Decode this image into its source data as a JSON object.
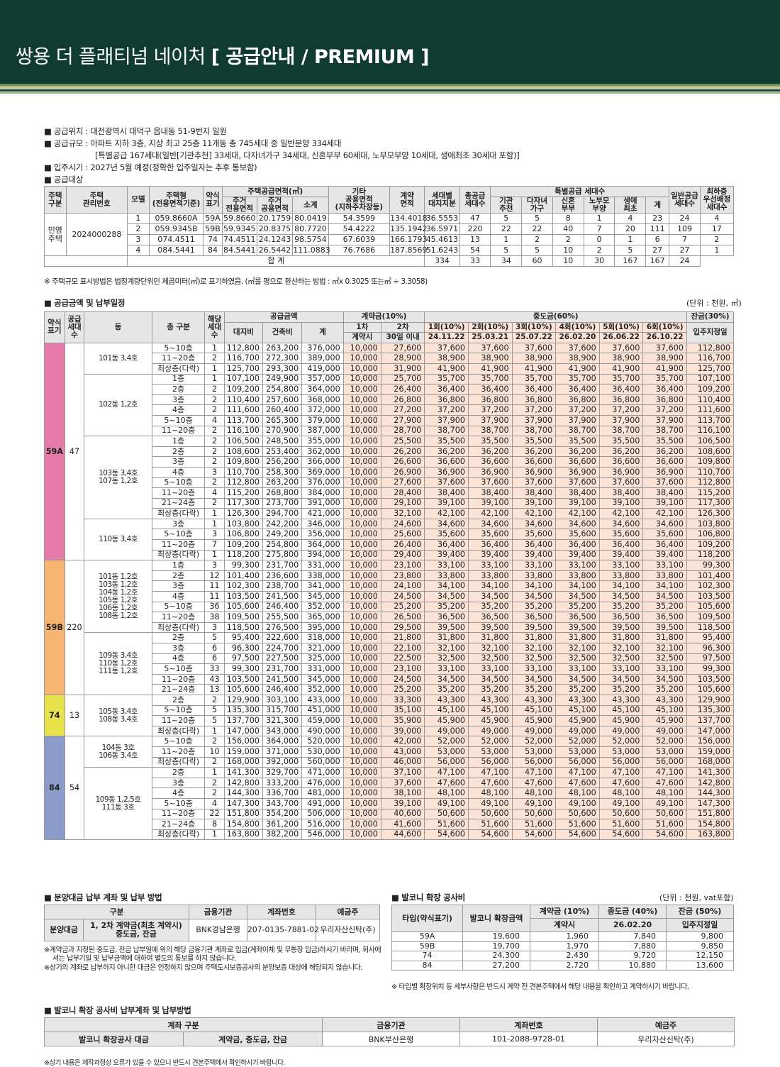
{
  "header": {
    "title_main": "쌍용 더 플래티넘 네이처",
    "title_bracket": "[ 공급안내 / PREMIUM ]"
  },
  "info": {
    "lines": [
      "■ 공급위치 : 대전광역시 대덕구 읍내동 51-9번지 일원",
      "■ 공급규모 : 아파트 지하 3층, 지상 최고 25층 11개동 총 745세대 중 일반분양 334세대",
      "[특별공급 167세대(일반[기관추천] 33세대, 다자녀가구 34세대, 신혼부부 60세대, 노부모부양 10세대, 생애최초 30세대 포함)]",
      "■ 입주시기 : 2027년 5월 예정(정확한 입주일자는 추후 통보함)",
      "■ 공급대상"
    ]
  },
  "supply_table": {
    "headers": {
      "type": "주택\n구분",
      "mgmt": "주택\n관리번호",
      "model": "모델",
      "htype": "주택형\n(전용면적기준)",
      "abbr": "약식\n표기",
      "area_group": "주택공급면적(㎡)",
      "excl": "주거\n전용면적",
      "common": "주거\n공용면적",
      "subtotal": "소계",
      "other": "기타\n공용면적\n(지하주차장등)",
      "contract": "계약\n면적",
      "land": "세대별\n대지지분",
      "total": "총공급\n세대수",
      "special_group": "특별공급 세대수",
      "inst": "기관\n추천",
      "multi": "다자녀\n가구",
      "newly": "신혼\n부부",
      "elder": "노부모\n부양",
      "first": "생애\n최초",
      "sp_sum": "계",
      "general": "일반공급\n세대수",
      "toppri": "최하층\n우선배정\n세대수"
    },
    "type_label": "민영\n주택",
    "mgmt_no": "2024000288",
    "rows": [
      [
        "1",
        "059.8660A",
        "59A",
        "59.8660",
        "20.1759",
        "80.0419",
        "54.3599",
        "134.4018",
        "36.5553",
        "47",
        "5",
        "5",
        "8",
        "1",
        "4",
        "23",
        "24",
        "4"
      ],
      [
        "2",
        "059.9345B",
        "59B",
        "59.9345",
        "20.8375",
        "80.7720",
        "54.4222",
        "135.1942",
        "36.5971",
        "220",
        "22",
        "22",
        "40",
        "7",
        "20",
        "111",
        "109",
        "17"
      ],
      [
        "3",
        "074.4511",
        "74",
        "74.4511",
        "24.1243",
        "98.5754",
        "67.6039",
        "166.1793",
        "45.4613",
        "13",
        "1",
        "2",
        "2",
        "0",
        "1",
        "6",
        "7",
        "2"
      ],
      [
        "4",
        "084.5441",
        "84",
        "84.5441",
        "26.5442",
        "111.0883",
        "76.7686",
        "187.8569",
        "51.6243",
        "54",
        "5",
        "5",
        "10",
        "2",
        "5",
        "27",
        "27",
        "1"
      ]
    ],
    "sum_label": "합 계",
    "sum_row": [
      "334",
      "33",
      "34",
      "60",
      "10",
      "30",
      "167",
      "167",
      "24"
    ]
  },
  "supply_note": "※ 주택규모 표시방법은 법정계량단위인 제곱미터(㎡)로 표기하였음. (㎡를 평으로 환산하는 방법 : ㎡x 0.3025 또는㎡ ÷ 3.3058)",
  "price_section": {
    "title": "■ 공급금액 및 납부일정",
    "unit": "(단위 : 천원, ㎡)"
  },
  "price_headers": {
    "abbr": "약식\n표기",
    "units": "공급\n세대\n수",
    "dong": "동",
    "floor": "층 구분",
    "hh": "해당\n세대\n수",
    "supply": "공급금액",
    "land": "대지비",
    "bldg": "건축비",
    "total": "계",
    "deposit": "계약금(10%)",
    "first": "1차",
    "second": "2차",
    "at_contract": "계약시",
    "within30": "30일 이내",
    "mid": "중도금(60%)",
    "m1": "1회(10%)",
    "m2": "2회(10%)",
    "m3": "3회(10%)",
    "m4": "4회(10%)",
    "m5": "5회(10%)",
    "m6": "6회(10%)",
    "d1": "24.11.22",
    "d2": "25.03.21",
    "d3": "25.07.22",
    "d4": "26.02.20",
    "d5": "26.06.22",
    "d6": "26.10.22",
    "balance": "잔금(30%)",
    "movein": "입주지정일"
  },
  "price_groups": [
    {
      "abbr": "59A",
      "units": "47",
      "color": "#e67aab",
      "dongs": [
        {
          "name": "101동 3,4호",
          "rows": [
            [
              "5~10층",
              "1",
              "112,800",
              "263,200",
              "376,000",
              "10,000",
              "27,600",
              "37,600",
              "112,800"
            ],
            [
              "11~20층",
              "2",
              "116,700",
              "272,300",
              "389,000",
              "10,000",
              "28,900",
              "38,900",
              "116,700"
            ],
            [
              "최상층(다락)",
              "1",
              "125,700",
              "293,300",
              "419,000",
              "10,000",
              "31,900",
              "41,900",
              "125,700"
            ]
          ]
        },
        {
          "name": "102동 1,2호",
          "rows": [
            [
              "1층",
              "1",
              "107,100",
              "249,900",
              "357,000",
              "10,000",
              "25,700",
              "35,700",
              "107,100"
            ],
            [
              "2층",
              "2",
              "109,200",
              "254,800",
              "364,000",
              "10,000",
              "26,400",
              "36,400",
              "109,200"
            ],
            [
              "3층",
              "2",
              "110,400",
              "257,600",
              "368,000",
              "10,000",
              "26,800",
              "36,800",
              "110,400"
            ],
            [
              "4층",
              "2",
              "111,600",
              "260,400",
              "372,000",
              "10,000",
              "27,200",
              "37,200",
              "111,600"
            ],
            [
              "5~10층",
              "4",
              "113,700",
              "265,300",
              "379,000",
              "10,000",
              "27,900",
              "37,900",
              "113,700"
            ],
            [
              "11~20층",
              "2",
              "116,100",
              "270,900",
              "387,000",
              "10,000",
              "28,700",
              "38,700",
              "116,100"
            ]
          ]
        },
        {
          "name": "103동 3,4호\n107동 1,2호",
          "rows": [
            [
              "1층",
              "2",
              "106,500",
              "248,500",
              "355,000",
              "10,000",
              "25,500",
              "35,500",
              "106,500"
            ],
            [
              "2층",
              "2",
              "108,600",
              "253,400",
              "362,000",
              "10,000",
              "26,200",
              "36,200",
              "108,600"
            ],
            [
              "3층",
              "2",
              "109,800",
              "256,200",
              "366,000",
              "10,000",
              "26,600",
              "36,600",
              "109,800"
            ],
            [
              "4층",
              "3",
              "110,700",
              "258,300",
              "369,000",
              "10,000",
              "26,900",
              "36,900",
              "110,700"
            ],
            [
              "5~10층",
              "2",
              "112,800",
              "263,200",
              "376,000",
              "10,000",
              "27,600",
              "37,600",
              "112,800"
            ],
            [
              "11~20층",
              "4",
              "115,200",
              "268,800",
              "384,000",
              "10,000",
              "28,400",
              "38,400",
              "115,200"
            ],
            [
              "21~24층",
              "2",
              "117,300",
              "273,700",
              "391,000",
              "10,000",
              "29,100",
              "39,100",
              "117,300"
            ],
            [
              "최상층(다락)",
              "1",
              "126,300",
              "294,700",
              "421,000",
              "10,000",
              "32,100",
              "42,100",
              "126,300"
            ]
          ]
        },
        {
          "name": "110동 3,4호",
          "rows": [
            [
              "3층",
              "1",
              "103,800",
              "242,200",
              "346,000",
              "10,000",
              "24,600",
              "34,600",
              "103,800"
            ],
            [
              "5~10층",
              "3",
              "106,800",
              "249,200",
              "356,000",
              "10,000",
              "25,600",
              "35,600",
              "106,800"
            ],
            [
              "11~20층",
              "7",
              "109,200",
              "254,800",
              "364,000",
              "10,000",
              "26,400",
              "36,400",
              "109,200"
            ],
            [
              "최상층(다락)",
              "1",
              "118,200",
              "275,800",
              "394,000",
              "10,000",
              "29,400",
              "39,400",
              "118,200"
            ]
          ]
        }
      ]
    },
    {
      "abbr": "59B",
      "units": "220",
      "color": "#f6b471",
      "dongs": [
        {
          "name": "101동 1,2호\n103동 1,2호\n104동 1,2호\n105동 1,2호\n106동 1,2호\n108동 1,2호",
          "rows": [
            [
              "1층",
              "3",
              "99,300",
              "231,700",
              "331,000",
              "10,000",
              "23,100",
              "33,100",
              "99,300"
            ],
            [
              "2층",
              "12",
              "101,400",
              "236,600",
              "338,000",
              "10,000",
              "23,800",
              "33,800",
              "101,400"
            ],
            [
              "3층",
              "11",
              "102,300",
              "238,700",
              "341,000",
              "10,000",
              "24,100",
              "34,100",
              "102,300"
            ],
            [
              "4층",
              "11",
              "103,500",
              "241,500",
              "345,000",
              "10,000",
              "24,500",
              "34,500",
              "103,500"
            ],
            [
              "5~10층",
              "36",
              "105,600",
              "246,400",
              "352,000",
              "10,000",
              "25,200",
              "35,200",
              "105,600"
            ],
            [
              "11~20층",
              "38",
              "109,500",
              "255,500",
              "365,000",
              "10,000",
              "26,500",
              "36,500",
              "109,500"
            ],
            [
              "최상층(다락)",
              "3",
              "118,500",
              "276,500",
              "395,000",
              "10,000",
              "29,500",
              "39,500",
              "118,500"
            ]
          ]
        },
        {
          "name": "109동 3,4호\n110동 1,2호\n111동 1,2호",
          "rows": [
            [
              "2층",
              "5",
              "95,400",
              "222,600",
              "318,000",
              "10,000",
              "21,800",
              "31,800",
              "95,400"
            ],
            [
              "3층",
              "6",
              "96,300",
              "224,700",
              "321,000",
              "10,000",
              "22,100",
              "32,100",
              "96,300"
            ],
            [
              "4층",
              "6",
              "97,500",
              "227,500",
              "325,000",
              "10,000",
              "22,500",
              "32,500",
              "97,500"
            ],
            [
              "5~10층",
              "33",
              "99,300",
              "231,700",
              "331,000",
              "10,000",
              "23,100",
              "33,100",
              "99,300"
            ],
            [
              "11~20층",
              "43",
              "103,500",
              "241,500",
              "345,000",
              "10,000",
              "24,500",
              "34,500",
              "103,500"
            ],
            [
              "21~24층",
              "13",
              "105,600",
              "246,400",
              "352,000",
              "10,000",
              "25,200",
              "35,200",
              "105,600"
            ]
          ]
        }
      ]
    },
    {
      "abbr": "74",
      "units": "13",
      "color": "#e8e34a",
      "dongs": [
        {
          "name": "105동 3,4호\n108동 3,4호",
          "rows": [
            [
              "2층",
              "2",
              "129,900",
              "303,100",
              "433,000",
              "10,000",
              "33,300",
              "43,300",
              "129,900"
            ],
            [
              "5~10층",
              "5",
              "135,300",
              "315,700",
              "451,000",
              "10,000",
              "35,100",
              "45,100",
              "135,300"
            ],
            [
              "11~20층",
              "5",
              "137,700",
              "321,300",
              "459,000",
              "10,000",
              "35,900",
              "45,900",
              "137,700"
            ],
            [
              "최상층(다락)",
              "1",
              "147,000",
              "343,000",
              "490,000",
              "10,000",
              "39,000",
              "49,000",
              "147,000"
            ]
          ]
        }
      ]
    },
    {
      "abbr": "84",
      "units": "54",
      "color": "#8b9ccb",
      "dongs": [
        {
          "name": "104동 3호\n106동 3,4호",
          "rows": [
            [
              "5~10층",
              "2",
              "156,000",
              "364,000",
              "520,000",
              "10,000",
              "42,000",
              "52,000",
              "156,000"
            ],
            [
              "11~20층",
              "10",
              "159,000",
              "371,000",
              "530,000",
              "10,000",
              "43,000",
              "53,000",
              "159,000"
            ],
            [
              "최상층(다락)",
              "2",
              "168,000",
              "392,000",
              "560,000",
              "10,000",
              "46,000",
              "56,000",
              "168,000"
            ]
          ]
        },
        {
          "name": "109동 1,2,5호\n111동 3호",
          "rows": [
            [
              "2층",
              "1",
              "141,300",
              "329,700",
              "471,000",
              "10,000",
              "37,100",
              "47,100",
              "141,300"
            ],
            [
              "3층",
              "2",
              "142,800",
              "333,200",
              "476,000",
              "10,000",
              "37,600",
              "47,600",
              "142,800"
            ],
            [
              "4층",
              "2",
              "144,300",
              "336,700",
              "481,000",
              "10,000",
              "38,100",
              "48,100",
              "144,300"
            ],
            [
              "5~10층",
              "4",
              "147,300",
              "343,700",
              "491,000",
              "10,000",
              "39,100",
              "49,100",
              "147,300"
            ],
            [
              "11~20층",
              "22",
              "151,800",
              "354,200",
              "506,000",
              "10,000",
              "40,600",
              "50,600",
              "151,800"
            ],
            [
              "21~24층",
              "8",
              "154,800",
              "361,200",
              "516,000",
              "10,000",
              "41,600",
              "51,600",
              "154,800"
            ],
            [
              "최상층(다락)",
              "1",
              "163,800",
              "382,200",
              "546,000",
              "10,000",
              "44,600",
              "54,600",
              "163,800"
            ]
          ]
        }
      ]
    }
  ],
  "payment": {
    "title": "■ 분양대금 납부 계좌 및 납부 방법",
    "headers": [
      "구분",
      "금융기관",
      "계좌번호",
      "예금주"
    ],
    "row_label": "분양대금",
    "row_desc": "1, 2차 계약금(최초 계약시)\n중도금, 잔금",
    "bank": "BNK경남은행",
    "account": "207-0135-7881-02",
    "holder": "우리자산신탁(주)",
    "notes": [
      "※계약금과 지정된 중도금, 잔금 납부일에 위의 해당 금융기관 계좌로 입금(계좌이체 및 무통장 입금)하시기 바라며, 회사에",
      "서는 납부기일 및 납부금액에 대하여 별도의 통보를 하지 않습니다.",
      "※상기의 계좌로 납부하지 아니한 대금은 인정하지 않으며 주택도시보증공사의 분양보증 대상에 해당되지 않습니다."
    ]
  },
  "balcony": {
    "title": "■ 발코니 확장 공사비",
    "unit": "(단위 : 천원, vat포함)",
    "headers": {
      "type": "타입(약식표기)",
      "amount": "발코니 확장금액",
      "dep": "계약금 (10%)",
      "mid": "중도금 (40%)",
      "bal": "잔금 (50%)",
      "dep_sub": "계약시",
      "mid_sub": "26.02.20",
      "bal_sub": "입주지정일"
    },
    "rows": [
      [
        "59A",
        "19,600",
        "1,960",
        "7,840",
        "9,800"
      ],
      [
        "59B",
        "19,700",
        "1,970",
        "7,880",
        "9,850"
      ],
      [
        "74",
        "24,300",
        "2,430",
        "9,720",
        "12,150"
      ],
      [
        "84",
        "27,200",
        "2,720",
        "10,880",
        "13,600"
      ]
    ],
    "note": "※ 타입별 확장위치 등 세부사항은 반드시 계약 전 견본주택에서 해당 내용을 확인하고 계약하시기 바랍니다."
  },
  "balcony_payment": {
    "title": "■ 발코니 확장 공사비 납부계좌 및 납부방법",
    "headers": [
      "계좌 구분",
      "금융기관",
      "계좌번호",
      "예금주"
    ],
    "row": [
      "발코니 확장공사 대금",
      "계약금, 중도금, 잔금",
      "BNK부산은행",
      "101-2088-9728-01",
      "우리자산신탁(주)"
    ]
  },
  "footer_note": "※상기 내용은 제작과정상 오류가 있을 수 있으니 반드시 견본주택에서 확인하시기 바랍니다.",
  "colors": {
    "header_bg": "#0f3b30",
    "pink_cell": "#fbe3d6",
    "gray_header": "#e6e6e6"
  }
}
